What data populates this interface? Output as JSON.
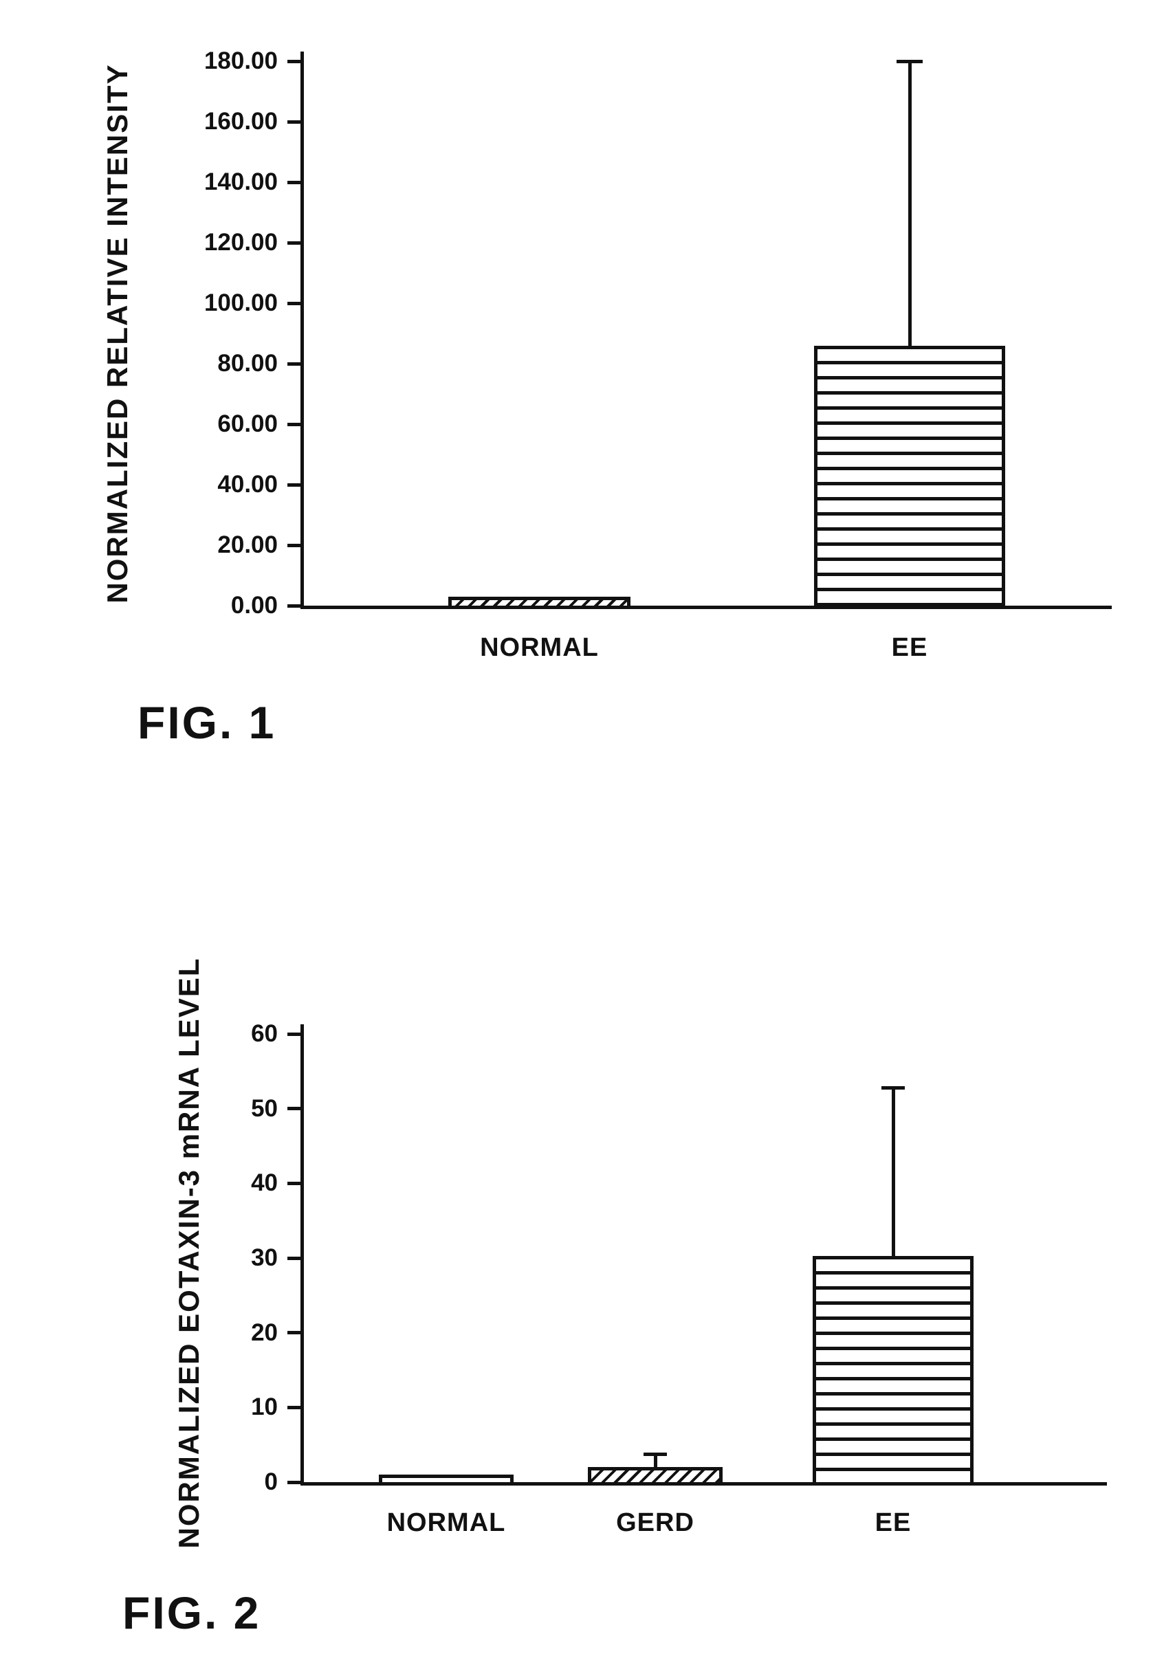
{
  "colors": {
    "ink": "#111111",
    "paper": "#ffffff"
  },
  "figures": {
    "fig1_caption": "FIG. 1",
    "fig2_caption": "FIG. 2"
  },
  "chart_data": [
    {
      "type": "bar",
      "figure_label": "FIG. 1",
      "title": "",
      "xlabel": "",
      "ylabel": "NORMALIZED RELATIVE INTENSITY",
      "categories": [
        "NORMAL",
        "EE"
      ],
      "values": [
        3,
        86
      ],
      "error_high": [
        null,
        180.5
      ],
      "ylim": [
        0,
        180
      ],
      "ytick_values": [
        0,
        20,
        40,
        60,
        80,
        100,
        120,
        140,
        160,
        180
      ],
      "ytick_labels": [
        "0.00",
        "20.00",
        "40.00",
        "60.00",
        "80.00",
        "100.00",
        "120.00",
        "140.00",
        "160.00",
        "180.00"
      ],
      "grid": false,
      "legend": false,
      "bar_patterns": [
        "diagonal-hatch",
        "horizontal-stripes"
      ]
    },
    {
      "type": "bar",
      "figure_label": "FIG. 2",
      "title": "",
      "xlabel": "",
      "ylabel": "NORMALIZED EOTAXIN-3 mRNA LEVEL",
      "categories": [
        "NORMAL",
        "GERD",
        "EE"
      ],
      "values": [
        0.8,
        2,
        30.3
      ],
      "error_high": [
        null,
        4,
        53
      ],
      "ylim": [
        0,
        60
      ],
      "ytick_values": [
        0,
        10,
        20,
        30,
        40,
        50,
        60
      ],
      "ytick_labels": [
        "0",
        "10",
        "20",
        "30",
        "40",
        "50",
        "60"
      ],
      "grid": false,
      "legend": false,
      "bar_patterns": [
        "horizontal-stripes",
        "diagonal-hatch",
        "horizontal-stripes"
      ]
    }
  ]
}
